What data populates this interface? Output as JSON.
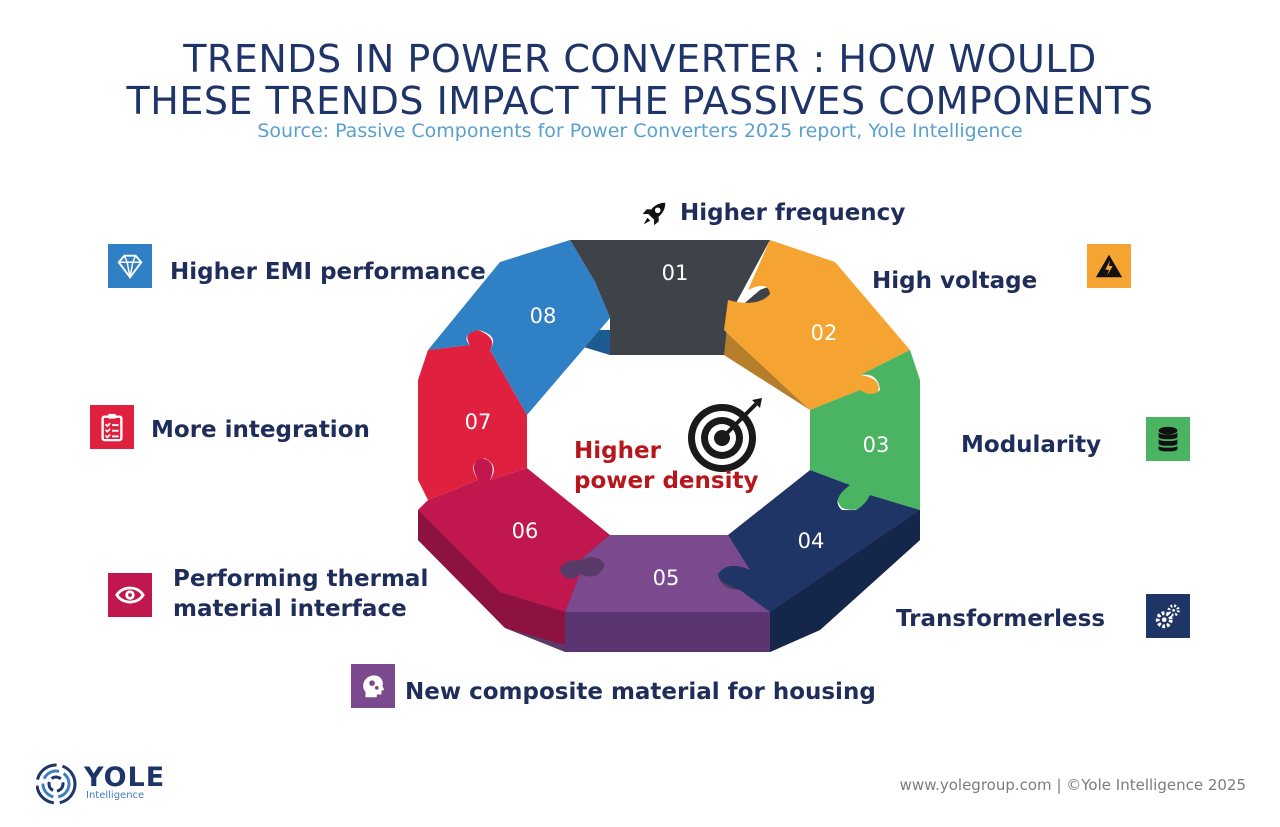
{
  "title": {
    "line1": "TRENDS IN POWER CONVERTER : HOW WOULD",
    "line2": "THESE TRENDS IMPACT THE PASSIVES COMPONENTS"
  },
  "source": "Source: Passive Components for Power Converters 2025 report, Yole Intelligence",
  "center": {
    "line1": "Higher",
    "line2": "power density"
  },
  "segments": [
    {
      "num": "01",
      "label": "Higher frequency",
      "color": "#3d4349",
      "icon": "rocket-icon"
    },
    {
      "num": "02",
      "label": "High voltage",
      "color": "#f5a431",
      "icon": "high-voltage-icon"
    },
    {
      "num": "03",
      "label": "Modularity",
      "color": "#4bb462",
      "icon": "database-icon"
    },
    {
      "num": "04",
      "label": "Transformerless",
      "color": "#1f3566",
      "icon": "gears-icon"
    },
    {
      "num": "05",
      "label": "New composite material for housing",
      "color": "#7b4a8e",
      "icon": "head-gears-icon"
    },
    {
      "num": "06",
      "label": "Performing thermal material interface",
      "color": "#c0174f",
      "icon": "eye-icon"
    },
    {
      "num": "07",
      "label": "More integration",
      "color": "#e0203f",
      "icon": "clipboard-icon"
    },
    {
      "num": "08",
      "label": "Higher EMI performance",
      "color": "#2f80c4",
      "icon": "diamond-icon"
    }
  ],
  "labels_multiline": {
    "seg06_line1": "Performing thermal",
    "seg06_line2": "material interface"
  },
  "logo": {
    "word": "YOLE",
    "sub": "Intelligence"
  },
  "footer": "www.yolegroup.com | ©Yole Intelligence 2025"
}
